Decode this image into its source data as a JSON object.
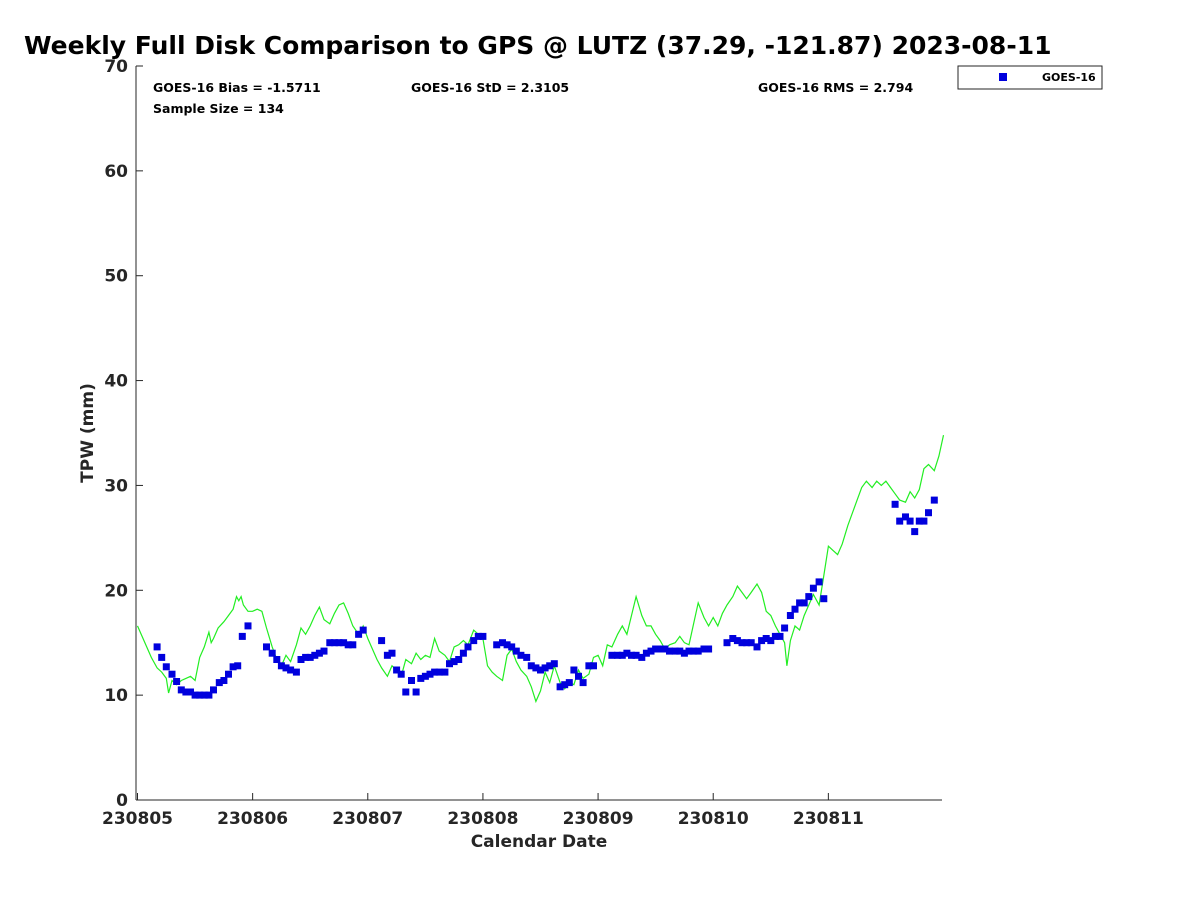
{
  "chart_data": {
    "type": "scatter",
    "title": "Weekly Full Disk Comparison to GPS @ LUTZ (37.29, -121.87) 2023-08-11",
    "xlabel": "Calendar Date",
    "ylabel": "TPW (mm)",
    "xlim": [
      0,
      7
    ],
    "ylim": [
      0,
      70
    ],
    "x_tick_labels": [
      "230805",
      "230806",
      "230807",
      "230808",
      "230809",
      "230810",
      "230811"
    ],
    "y_tick_labels": [
      "0",
      "10",
      "20",
      "30",
      "40",
      "50",
      "60",
      "70"
    ],
    "grid": false,
    "legend_position": "top-right (outside plot)",
    "stats": {
      "bias": "GOES-16 Bias = -1.5711",
      "std": "GOES-16 StD = 2.3105",
      "rms": "GOES-16 RMS = 2.794",
      "sample_size": "Sample Size = 134"
    },
    "series": [
      {
        "name": "GOES-16",
        "kind": "scatter",
        "marker": "square",
        "color": "#0000dd",
        "points": [
          [
            0.17,
            14.6
          ],
          [
            0.21,
            13.6
          ],
          [
            0.25,
            12.7
          ],
          [
            0.3,
            12.0
          ],
          [
            0.34,
            11.3
          ],
          [
            0.38,
            10.5
          ],
          [
            0.42,
            10.3
          ],
          [
            0.46,
            10.3
          ],
          [
            0.5,
            10.0
          ],
          [
            0.54,
            10.0
          ],
          [
            0.58,
            10.0
          ],
          [
            0.62,
            10.0
          ],
          [
            0.66,
            10.5
          ],
          [
            0.71,
            11.2
          ],
          [
            0.75,
            11.4
          ],
          [
            0.79,
            12.0
          ],
          [
            0.83,
            12.7
          ],
          [
            0.87,
            12.8
          ],
          [
            0.91,
            15.6
          ],
          [
            0.96,
            16.6
          ],
          [
            1.12,
            14.6
          ],
          [
            1.17,
            14.0
          ],
          [
            1.21,
            13.4
          ],
          [
            1.25,
            12.8
          ],
          [
            1.29,
            12.6
          ],
          [
            1.33,
            12.4
          ],
          [
            1.38,
            12.2
          ],
          [
            1.42,
            13.4
          ],
          [
            1.46,
            13.6
          ],
          [
            1.5,
            13.6
          ],
          [
            1.54,
            13.8
          ],
          [
            1.58,
            14.0
          ],
          [
            1.62,
            14.2
          ],
          [
            1.67,
            15.0
          ],
          [
            1.71,
            15.0
          ],
          [
            1.75,
            15.0
          ],
          [
            1.79,
            15.0
          ],
          [
            1.83,
            14.8
          ],
          [
            1.87,
            14.8
          ],
          [
            1.92,
            15.8
          ],
          [
            1.96,
            16.2
          ],
          [
            2.12,
            15.2
          ],
          [
            2.17,
            13.8
          ],
          [
            2.21,
            14.0
          ],
          [
            2.25,
            12.4
          ],
          [
            2.29,
            12.0
          ],
          [
            2.33,
            10.3
          ],
          [
            2.38,
            11.4
          ],
          [
            2.42,
            10.3
          ],
          [
            2.46,
            11.6
          ],
          [
            2.5,
            11.8
          ],
          [
            2.54,
            12.0
          ],
          [
            2.58,
            12.2
          ],
          [
            2.62,
            12.2
          ],
          [
            2.67,
            12.2
          ],
          [
            2.71,
            13.0
          ],
          [
            2.75,
            13.2
          ],
          [
            2.79,
            13.4
          ],
          [
            2.83,
            14.0
          ],
          [
            2.87,
            14.6
          ],
          [
            2.92,
            15.2
          ],
          [
            2.96,
            15.6
          ],
          [
            3.0,
            15.6
          ],
          [
            3.12,
            14.8
          ],
          [
            3.17,
            15.0
          ],
          [
            3.21,
            14.8
          ],
          [
            3.25,
            14.6
          ],
          [
            3.29,
            14.2
          ],
          [
            3.33,
            13.8
          ],
          [
            3.38,
            13.6
          ],
          [
            3.42,
            12.8
          ],
          [
            3.46,
            12.6
          ],
          [
            3.5,
            12.4
          ],
          [
            3.54,
            12.6
          ],
          [
            3.58,
            12.8
          ],
          [
            3.62,
            13.0
          ],
          [
            3.67,
            10.8
          ],
          [
            3.71,
            11.0
          ],
          [
            3.75,
            11.2
          ],
          [
            3.79,
            12.4
          ],
          [
            3.83,
            11.8
          ],
          [
            3.87,
            11.2
          ],
          [
            3.92,
            12.8
          ],
          [
            3.96,
            12.8
          ],
          [
            4.12,
            13.8
          ],
          [
            4.17,
            13.8
          ],
          [
            4.21,
            13.8
          ],
          [
            4.25,
            14.0
          ],
          [
            4.29,
            13.8
          ],
          [
            4.33,
            13.8
          ],
          [
            4.38,
            13.6
          ],
          [
            4.42,
            14.0
          ],
          [
            4.46,
            14.2
          ],
          [
            4.5,
            14.4
          ],
          [
            4.54,
            14.4
          ],
          [
            4.58,
            14.4
          ],
          [
            4.62,
            14.2
          ],
          [
            4.67,
            14.2
          ],
          [
            4.71,
            14.2
          ],
          [
            4.75,
            14.0
          ],
          [
            4.79,
            14.2
          ],
          [
            4.83,
            14.2
          ],
          [
            4.87,
            14.2
          ],
          [
            4.92,
            14.4
          ],
          [
            4.96,
            14.4
          ],
          [
            5.12,
            15.0
          ],
          [
            5.17,
            15.4
          ],
          [
            5.21,
            15.2
          ],
          [
            5.25,
            15.0
          ],
          [
            5.29,
            15.0
          ],
          [
            5.33,
            15.0
          ],
          [
            5.38,
            14.6
          ],
          [
            5.42,
            15.2
          ],
          [
            5.46,
            15.4
          ],
          [
            5.5,
            15.2
          ],
          [
            5.54,
            15.6
          ],
          [
            5.58,
            15.6
          ],
          [
            5.62,
            16.4
          ],
          [
            5.67,
            17.6
          ],
          [
            5.71,
            18.2
          ],
          [
            5.75,
            18.8
          ],
          [
            5.79,
            18.8
          ],
          [
            5.83,
            19.4
          ],
          [
            5.87,
            20.2
          ],
          [
            5.92,
            20.8
          ],
          [
            5.96,
            19.2
          ],
          [
            6.58,
            28.2
          ],
          [
            6.62,
            26.6
          ],
          [
            6.67,
            27.0
          ],
          [
            6.71,
            26.6
          ],
          [
            6.75,
            25.6
          ],
          [
            6.79,
            26.6
          ],
          [
            6.83,
            26.6
          ],
          [
            6.87,
            27.4
          ],
          [
            6.92,
            28.6
          ]
        ]
      },
      {
        "name": "GPS",
        "kind": "line",
        "color": "#22ee22",
        "points": [
          [
            0.0,
            16.6
          ],
          [
            0.04,
            15.6
          ],
          [
            0.08,
            14.6
          ],
          [
            0.12,
            13.6
          ],
          [
            0.17,
            12.6
          ],
          [
            0.21,
            12.2
          ],
          [
            0.25,
            11.6
          ],
          [
            0.27,
            10.2
          ],
          [
            0.3,
            11.4
          ],
          [
            0.34,
            11.0
          ],
          [
            0.38,
            11.4
          ],
          [
            0.42,
            11.6
          ],
          [
            0.46,
            11.8
          ],
          [
            0.5,
            11.4
          ],
          [
            0.54,
            13.6
          ],
          [
            0.58,
            14.6
          ],
          [
            0.62,
            16.0
          ],
          [
            0.64,
            15.0
          ],
          [
            0.66,
            15.4
          ],
          [
            0.7,
            16.4
          ],
          [
            0.75,
            17.0
          ],
          [
            0.79,
            17.6
          ],
          [
            0.83,
            18.2
          ],
          [
            0.86,
            19.4
          ],
          [
            0.88,
            19.0
          ],
          [
            0.9,
            19.4
          ],
          [
            0.92,
            18.6
          ],
          [
            0.96,
            18.0
          ],
          [
            1.0,
            18.0
          ],
          [
            1.04,
            18.2
          ],
          [
            1.08,
            18.0
          ],
          [
            1.12,
            16.4
          ],
          [
            1.17,
            14.6
          ],
          [
            1.21,
            13.4
          ],
          [
            1.25,
            12.8
          ],
          [
            1.29,
            13.8
          ],
          [
            1.33,
            13.2
          ],
          [
            1.38,
            14.8
          ],
          [
            1.42,
            16.4
          ],
          [
            1.46,
            15.8
          ],
          [
            1.5,
            16.6
          ],
          [
            1.54,
            17.6
          ],
          [
            1.58,
            18.4
          ],
          [
            1.62,
            17.2
          ],
          [
            1.67,
            16.8
          ],
          [
            1.71,
            17.8
          ],
          [
            1.75,
            18.6
          ],
          [
            1.79,
            18.8
          ],
          [
            1.83,
            17.8
          ],
          [
            1.87,
            16.6
          ],
          [
            1.92,
            15.8
          ],
          [
            1.96,
            16.6
          ],
          [
            2.0,
            15.4
          ],
          [
            2.04,
            14.4
          ],
          [
            2.08,
            13.4
          ],
          [
            2.12,
            12.6
          ],
          [
            2.17,
            11.8
          ],
          [
            2.21,
            12.8
          ],
          [
            2.25,
            12.4
          ],
          [
            2.29,
            11.8
          ],
          [
            2.33,
            13.4
          ],
          [
            2.38,
            13.0
          ],
          [
            2.42,
            14.0
          ],
          [
            2.46,
            13.4
          ],
          [
            2.5,
            13.8
          ],
          [
            2.54,
            13.6
          ],
          [
            2.58,
            15.4
          ],
          [
            2.62,
            14.2
          ],
          [
            2.67,
            13.8
          ],
          [
            2.71,
            13.2
          ],
          [
            2.75,
            14.6
          ],
          [
            2.79,
            14.8
          ],
          [
            2.83,
            15.2
          ],
          [
            2.87,
            14.8
          ],
          [
            2.92,
            16.2
          ],
          [
            2.96,
            15.8
          ],
          [
            3.0,
            15.4
          ],
          [
            3.04,
            12.8
          ],
          [
            3.08,
            12.2
          ],
          [
            3.12,
            11.8
          ],
          [
            3.17,
            11.4
          ],
          [
            3.21,
            13.8
          ],
          [
            3.25,
            14.4
          ],
          [
            3.29,
            13.2
          ],
          [
            3.33,
            12.4
          ],
          [
            3.38,
            11.8
          ],
          [
            3.42,
            10.8
          ],
          [
            3.46,
            9.4
          ],
          [
            3.5,
            10.4
          ],
          [
            3.54,
            12.2
          ],
          [
            3.58,
            11.2
          ],
          [
            3.62,
            12.8
          ],
          [
            3.67,
            11.2
          ],
          [
            3.71,
            10.6
          ],
          [
            3.75,
            11.2
          ],
          [
            3.79,
            11.0
          ],
          [
            3.83,
            12.4
          ],
          [
            3.87,
            11.6
          ],
          [
            3.92,
            12.0
          ],
          [
            3.96,
            13.6
          ],
          [
            4.0,
            13.8
          ],
          [
            4.04,
            12.8
          ],
          [
            4.08,
            14.8
          ],
          [
            4.12,
            14.6
          ],
          [
            4.17,
            15.8
          ],
          [
            4.21,
            16.6
          ],
          [
            4.25,
            15.8
          ],
          [
            4.29,
            17.6
          ],
          [
            4.33,
            19.4
          ],
          [
            4.38,
            17.6
          ],
          [
            4.42,
            16.6
          ],
          [
            4.46,
            16.6
          ],
          [
            4.5,
            15.8
          ],
          [
            4.54,
            15.2
          ],
          [
            4.58,
            14.4
          ],
          [
            4.62,
            14.8
          ],
          [
            4.67,
            15.0
          ],
          [
            4.71,
            15.6
          ],
          [
            4.75,
            15.0
          ],
          [
            4.79,
            14.8
          ],
          [
            4.83,
            16.8
          ],
          [
            4.87,
            18.8
          ],
          [
            4.92,
            17.4
          ],
          [
            4.96,
            16.6
          ],
          [
            5.0,
            17.4
          ],
          [
            5.04,
            16.6
          ],
          [
            5.08,
            17.8
          ],
          [
            5.12,
            18.6
          ],
          [
            5.17,
            19.4
          ],
          [
            5.21,
            20.4
          ],
          [
            5.25,
            19.8
          ],
          [
            5.29,
            19.2
          ],
          [
            5.33,
            19.8
          ],
          [
            5.38,
            20.6
          ],
          [
            5.42,
            19.8
          ],
          [
            5.46,
            18.0
          ],
          [
            5.5,
            17.6
          ],
          [
            5.54,
            16.6
          ],
          [
            5.58,
            15.8
          ],
          [
            5.62,
            15.0
          ],
          [
            5.64,
            12.8
          ],
          [
            5.67,
            15.2
          ],
          [
            5.71,
            16.6
          ],
          [
            5.75,
            16.2
          ],
          [
            5.79,
            17.6
          ],
          [
            5.83,
            18.6
          ],
          [
            5.87,
            19.6
          ],
          [
            5.92,
            18.6
          ],
          [
            5.96,
            21.4
          ],
          [
            6.0,
            24.2
          ],
          [
            6.04,
            23.8
          ],
          [
            6.08,
            23.4
          ],
          [
            6.12,
            24.4
          ],
          [
            6.17,
            26.2
          ],
          [
            6.21,
            27.4
          ],
          [
            6.25,
            28.6
          ],
          [
            6.29,
            29.8
          ],
          [
            6.33,
            30.4
          ],
          [
            6.38,
            29.8
          ],
          [
            6.42,
            30.4
          ],
          [
            6.46,
            30.0
          ],
          [
            6.5,
            30.4
          ],
          [
            6.54,
            29.8
          ],
          [
            6.58,
            29.2
          ],
          [
            6.62,
            28.6
          ],
          [
            6.67,
            28.4
          ],
          [
            6.71,
            29.4
          ],
          [
            6.75,
            28.8
          ],
          [
            6.79,
            29.6
          ],
          [
            6.83,
            31.6
          ],
          [
            6.87,
            32.0
          ],
          [
            6.92,
            31.4
          ],
          [
            6.96,
            32.8
          ],
          [
            7.0,
            34.8
          ]
        ]
      }
    ]
  },
  "legend": {
    "label": "GOES-16"
  }
}
